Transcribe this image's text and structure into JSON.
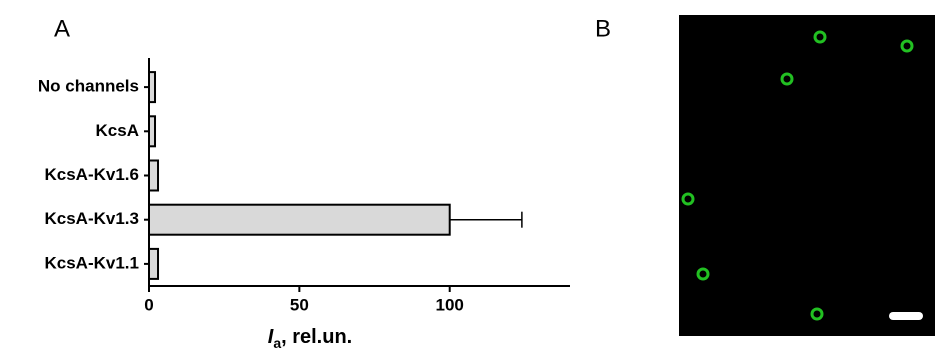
{
  "panel_labels": [
    "A",
    "B"
  ],
  "chart_data": {
    "type": "hbar",
    "categories": [
      "No channels",
      "KcsA",
      "KcsA-Kv1.6",
      "KcsA-Kv1.3",
      "KcsA-Kv1.1"
    ],
    "values": [
      2,
      2,
      3,
      100,
      3
    ],
    "errors": [
      null,
      null,
      null,
      24,
      null
    ],
    "color": "#d9d9d9",
    "xlim": [
      0,
      140
    ],
    "xticks": [
      0,
      50,
      100
    ],
    "x_label": [
      "I",
      "a",
      ", rel.un."
    ]
  }
}
